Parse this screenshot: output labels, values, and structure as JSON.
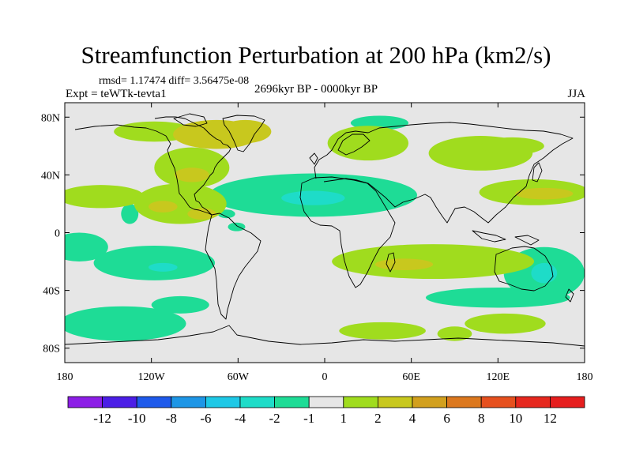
{
  "chart_data": {
    "type": "heatmap",
    "title": "Streamfunction Perturbation at 200 hPa (km2/s)",
    "stats_text": "rmsd= 1.17474  diff= 3.56475e-08",
    "experiment_text": "Expt = teWTk-tevta1",
    "period_text": "2696kyr BP - 0000kyr BP",
    "season_text": "JJA",
    "x_ticks": [
      "180",
      "120W",
      "60W",
      "0",
      "60E",
      "120E",
      "180"
    ],
    "x_tick_values": [
      -180,
      -120,
      -60,
      0,
      60,
      120,
      180
    ],
    "y_ticks": [
      "80N",
      "40N",
      "0",
      "40S",
      "80S"
    ],
    "y_tick_values": [
      80,
      40,
      0,
      -40,
      -80
    ],
    "xlim": [
      -180,
      180
    ],
    "ylim": [
      -90,
      90
    ],
    "colorbar": {
      "labels": [
        "-12",
        "-10",
        "-8",
        "-6",
        "-4",
        "-2",
        "-1",
        "1",
        "2",
        "4",
        "6",
        "8",
        "10",
        "12"
      ],
      "colors": [
        "#8c1ee6",
        "#4b1ee6",
        "#1e5aeb",
        "#1e96e6",
        "#1ec8e6",
        "#1edcc8",
        "#1edc96",
        "#e6e6e6",
        "#a0dc1e",
        "#c8c81e",
        "#d2a01e",
        "#dc781e",
        "#e6501e",
        "#e6281e",
        "#e61e1e"
      ]
    },
    "regions": [
      {
        "lon": -118,
        "lat": 70,
        "rx": 28,
        "ry": 7,
        "level": 2
      },
      {
        "lon": -75,
        "lat": 68,
        "rx": 30,
        "ry": 10,
        "level": 3
      },
      {
        "lon": -55,
        "lat": 70,
        "rx": 18,
        "ry": 8,
        "level": 3
      },
      {
        "lon": -92,
        "lat": 45,
        "rx": 26,
        "ry": 14,
        "level": 2
      },
      {
        "lon": -92,
        "lat": 40,
        "rx": 12,
        "ry": 5,
        "level": 3
      },
      {
        "lon": -155,
        "lat": 25,
        "rx": 30,
        "ry": 8,
        "level": 2
      },
      {
        "lon": -100,
        "lat": 20,
        "rx": 32,
        "ry": 14,
        "level": 2
      },
      {
        "lon": -112,
        "lat": 18,
        "rx": 10,
        "ry": 4,
        "level": 3
      },
      {
        "lon": -85,
        "lat": 13,
        "rx": 10,
        "ry": 4,
        "level": 3
      },
      {
        "lon": -135,
        "lat": 13,
        "rx": 6,
        "ry": 7,
        "level": 1
      },
      {
        "lon": -61,
        "lat": 4,
        "rx": 6,
        "ry": 3,
        "level": 1
      },
      {
        "lon": -68,
        "lat": 13,
        "rx": 6,
        "ry": 3,
        "level": 1
      },
      {
        "lon": -8,
        "lat": 26,
        "rx": 72,
        "ry": 15,
        "level": 1
      },
      {
        "lon": -8,
        "lat": 24,
        "rx": 22,
        "ry": 5,
        "level": 0
      },
      {
        "lon": 38,
        "lat": 76,
        "rx": 20,
        "ry": 5,
        "level": 1
      },
      {
        "lon": 30,
        "lat": 62,
        "rx": 28,
        "ry": 12,
        "level": 2
      },
      {
        "lon": 108,
        "lat": 55,
        "rx": 36,
        "ry": 12,
        "level": 2
      },
      {
        "lon": 130,
        "lat": 60,
        "rx": 22,
        "ry": 6,
        "level": 2
      },
      {
        "lon": 145,
        "lat": 28,
        "rx": 38,
        "ry": 9,
        "level": 2
      },
      {
        "lon": 152,
        "lat": 27,
        "rx": 20,
        "ry": 4,
        "level": 3
      },
      {
        "lon": -170,
        "lat": -10,
        "rx": 20,
        "ry": 10,
        "level": 1
      },
      {
        "lon": -118,
        "lat": -21,
        "rx": 42,
        "ry": 12,
        "level": 1
      },
      {
        "lon": -112,
        "lat": -24,
        "rx": 10,
        "ry": 3,
        "level": 0
      },
      {
        "lon": 75,
        "lat": -20,
        "rx": 70,
        "ry": 12,
        "level": 2
      },
      {
        "lon": 55,
        "lat": -22,
        "rx": 20,
        "ry": 4,
        "level": 3
      },
      {
        "lon": 152,
        "lat": -28,
        "rx": 28,
        "ry": 18,
        "level": 1
      },
      {
        "lon": 152,
        "lat": -28,
        "rx": 9,
        "ry": 7,
        "level": 0
      },
      {
        "lon": 120,
        "lat": -45,
        "rx": 50,
        "ry": 7,
        "level": 1
      },
      {
        "lon": -140,
        "lat": -63,
        "rx": 44,
        "ry": 12,
        "level": 1
      },
      {
        "lon": -100,
        "lat": -50,
        "rx": 20,
        "ry": 6,
        "level": 1
      },
      {
        "lon": 40,
        "lat": -68,
        "rx": 30,
        "ry": 6,
        "level": 2
      },
      {
        "lon": 90,
        "lat": -70,
        "rx": 12,
        "ry": 5,
        "level": 2
      },
      {
        "lon": 125,
        "lat": -63,
        "rx": 28,
        "ry": 7,
        "level": 2
      }
    ]
  }
}
